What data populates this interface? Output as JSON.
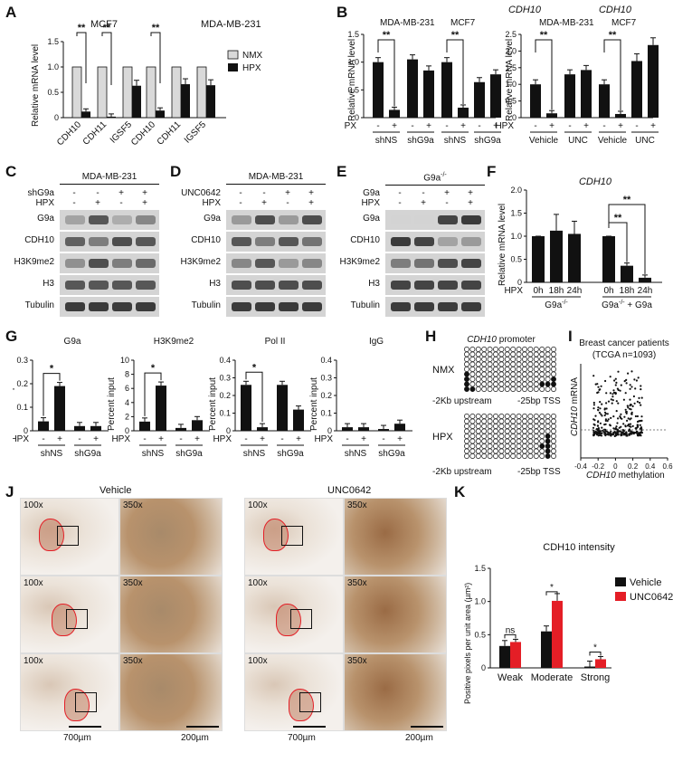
{
  "panels": {
    "A": {
      "label": "A",
      "ylabel": "Relative mRNA level",
      "group_labels": [
        "MCF7",
        "MDA-MB-231"
      ],
      "legend": [
        "NMX",
        "HPX"
      ],
      "yticks": [
        "0",
        "0.5",
        "1.0",
        "1.5"
      ],
      "sig": [
        "**",
        "**",
        "**"
      ]
    },
    "B": {
      "label": "B",
      "title": "CDH10",
      "ylabel": "Relative mRNA level",
      "left_groups": [
        "MDA-MB-231",
        "MCF7"
      ],
      "right_groups": [
        "MDA-MB-231",
        "MCF7"
      ],
      "hpx_label": "HPX",
      "left_yticks": [
        "0",
        "0.5",
        "1.0",
        "1.5"
      ],
      "right_yticks": [
        "0",
        "0.5",
        "1.0",
        "1.5",
        "2.0",
        "2.5"
      ],
      "left_conditions": [
        "shNS",
        "shG9a",
        "shNS",
        "shG9a"
      ],
      "right_conditions": [
        "Vehicle",
        "UNC",
        "Vehicle",
        "UNC"
      ],
      "signs": [
        "-",
        "+"
      ],
      "sig": "**"
    },
    "C": {
      "label": "C",
      "header": "MDA-MB-231",
      "rows": [
        "shG9a",
        "HPX"
      ],
      "row_signs": [
        [
          "-",
          "-",
          "+",
          "+"
        ],
        [
          "-",
          "+",
          "-",
          "+"
        ]
      ],
      "bands": [
        "G9a",
        "CDH10",
        "H3K9me2",
        "H3",
        "Tubulin"
      ]
    },
    "D": {
      "label": "D",
      "header": "MDA-MB-231",
      "rows": [
        "UNC0642",
        "HPX"
      ],
      "row_signs": [
        [
          "-",
          "-",
          "+",
          "+"
        ],
        [
          "-",
          "+",
          "-",
          "+"
        ]
      ],
      "bands": [
        "G9a",
        "CDH10",
        "H3K9me2",
        "H3",
        "Tubulin"
      ]
    },
    "E": {
      "label": "E",
      "header": "G9a",
      "header_sup": "-/-",
      "rows": [
        "G9a",
        "HPX"
      ],
      "row_signs": [
        [
          "-",
          "-",
          "+",
          "+"
        ],
        [
          "-",
          "+",
          "-",
          "+"
        ]
      ],
      "bands": [
        "G9a",
        "CDH10",
        "H3K9me2",
        "H3",
        "Tubulin"
      ]
    },
    "F": {
      "label": "F",
      "title": "CDH10",
      "ylabel": "Relative mRNA level",
      "yticks": [
        "0",
        "0.5",
        "1.0",
        "1.5",
        "2.0"
      ],
      "hpx_label": "HPX",
      "timepoints": [
        "0h",
        "18h",
        "24h",
        "0h",
        "18h",
        "24h"
      ],
      "groups": [
        "G9a",
        "G9a"
      ],
      "group_sup": [
        "-/-",
        "-/-"
      ],
      "group_suffix": [
        "",
        " + G9a"
      ],
      "sig": [
        "**",
        "**"
      ]
    },
    "G": {
      "label": "G",
      "ylabel": "Percent input",
      "hpx_label": "HPX",
      "subpanels": [
        {
          "title": "G9a",
          "yticks": [
            "0",
            "0.1",
            "0.2",
            "0.3"
          ],
          "sig": "*"
        },
        {
          "title": "H3K9me2",
          "yticks": [
            "0",
            "2",
            "4",
            "6",
            "8",
            "10"
          ],
          "sig": "*"
        },
        {
          "title": "Pol II",
          "yticks": [
            "0",
            "0.1",
            "0.2",
            "0.3",
            "0.4"
          ],
          "sig": "*"
        },
        {
          "title": "IgG",
          "yticks": [
            "0",
            "0.1",
            "0.2",
            "0.3",
            "0.4"
          ],
          "sig": ""
        }
      ],
      "conditions": [
        "shNS",
        "shG9a"
      ],
      "signs": [
        "-",
        "+"
      ]
    },
    "H": {
      "label": "H",
      "title": "CDH10",
      "title_suffix": " promoter",
      "conditions": [
        "NMX",
        "HPX"
      ],
      "left_axis": "-2Kb upstream",
      "right_axis": "-25bp TSS"
    },
    "I": {
      "label": "I",
      "title_line1": "Breast cancer patients",
      "title_line2": "(TCGA n=1093)",
      "ylabel": "CDH10",
      "ylabel_suffix": " mRNA",
      "xlabel": "CDH10",
      "xlabel_suffix": " methylation",
      "xticks": [
        "-0.4",
        "-0.2",
        "0",
        "0.2",
        "0.4",
        "0.6"
      ]
    },
    "J": {
      "label": "J",
      "groups": [
        "Vehicle",
        "UNC0642"
      ],
      "mag_low": "100x",
      "mag_high": "350x",
      "scale_low": "700µm",
      "scale_high": "200µm"
    },
    "K": {
      "label": "K",
      "title": "CDH10 intensity",
      "ylabel": "Positive pixels per unit area (µm²)",
      "yticks": [
        "0",
        "0.5",
        "1.0",
        "1.5"
      ],
      "legend": [
        "Vehicle",
        "UNC0642"
      ],
      "sig": [
        "ns",
        "*",
        "*"
      ]
    }
  },
  "colors": {
    "black": "#111111",
    "grey": "#d9d9d9",
    "red": "#e41e26",
    "blot_dark": "#2b2b2b",
    "blot_mid": "#6f6f6f",
    "tissue_bg": "#efe9e4",
    "tissue_stain": "#a97a4f"
  },
  "chart_data": [
    {
      "panel": "A",
      "type": "bar",
      "categories": [
        "CDH10",
        "CDH11",
        "IGSF5",
        "CDH10",
        "CDH11",
        "IGSF5"
      ],
      "series": [
        {
          "name": "NMX",
          "values": [
            1.0,
            1.0,
            1.0,
            1.0,
            1.0,
            1.0
          ]
        },
        {
          "name": "HPX",
          "values": [
            0.12,
            0.02,
            0.63,
            0.14,
            0.66,
            0.64
          ]
        }
      ],
      "ylim": [
        0,
        1.5
      ]
    },
    {
      "panel": "B-left",
      "type": "bar",
      "categories": [
        "shNS -",
        "shNS +",
        "shG9a -",
        "shG9a +",
        "shNS -",
        "shNS +",
        "shG9a -",
        "shG9a +"
      ],
      "values": [
        1.0,
        0.14,
        1.05,
        0.85,
        1.0,
        0.18,
        0.64,
        0.78
      ],
      "ylim": [
        0,
        1.5
      ]
    },
    {
      "panel": "B-right",
      "type": "bar",
      "categories": [
        "Vehicle -",
        "Vehicle +",
        "UNC -",
        "UNC +",
        "Vehicle -",
        "Vehicle +",
        "UNC -",
        "UNC +"
      ],
      "values": [
        1.0,
        0.13,
        1.3,
        1.43,
        1.0,
        0.11,
        1.7,
        2.18
      ],
      "ylim": [
        0,
        2.5
      ]
    },
    {
      "panel": "F",
      "type": "bar",
      "categories": [
        "0h",
        "18h",
        "24h",
        "0h",
        "18h",
        "24h"
      ],
      "values": [
        1.0,
        1.12,
        1.05,
        1.0,
        0.36,
        0.1
      ],
      "ylim": [
        0,
        2.0
      ]
    },
    {
      "panel": "G-G9a",
      "type": "bar",
      "categories": [
        "shNS -",
        "shNS +",
        "shG9a -",
        "shG9a +"
      ],
      "values": [
        0.04,
        0.19,
        0.02,
        0.02
      ],
      "ylim": [
        0,
        0.3
      ]
    },
    {
      "panel": "G-H3K9me2",
      "type": "bar",
      "categories": [
        "shNS -",
        "shNS +",
        "shG9a -",
        "shG9a +"
      ],
      "values": [
        1.3,
        6.4,
        0.4,
        1.5
      ],
      "ylim": [
        0,
        10
      ]
    },
    {
      "panel": "G-PolII",
      "type": "bar",
      "categories": [
        "shNS -",
        "shNS +",
        "shG9a -",
        "shG9a +"
      ],
      "values": [
        0.26,
        0.02,
        0.26,
        0.12
      ],
      "ylim": [
        0,
        0.4
      ]
    },
    {
      "panel": "G-IgG",
      "type": "bar",
      "categories": [
        "shNS -",
        "shNS +",
        "shG9a -",
        "shG9a +"
      ],
      "values": [
        0.02,
        0.02,
        0.01,
        0.04
      ],
      "ylim": [
        0,
        0.4
      ]
    },
    {
      "panel": "K",
      "type": "bar",
      "categories": [
        "Weak",
        "Moderate",
        "Strong"
      ],
      "series": [
        {
          "name": "Vehicle",
          "values": [
            0.33,
            0.55,
            0.02
          ]
        },
        {
          "name": "UNC0642",
          "values": [
            0.39,
            1.01,
            0.13
          ]
        }
      ],
      "ylim": [
        0,
        1.5
      ]
    }
  ]
}
